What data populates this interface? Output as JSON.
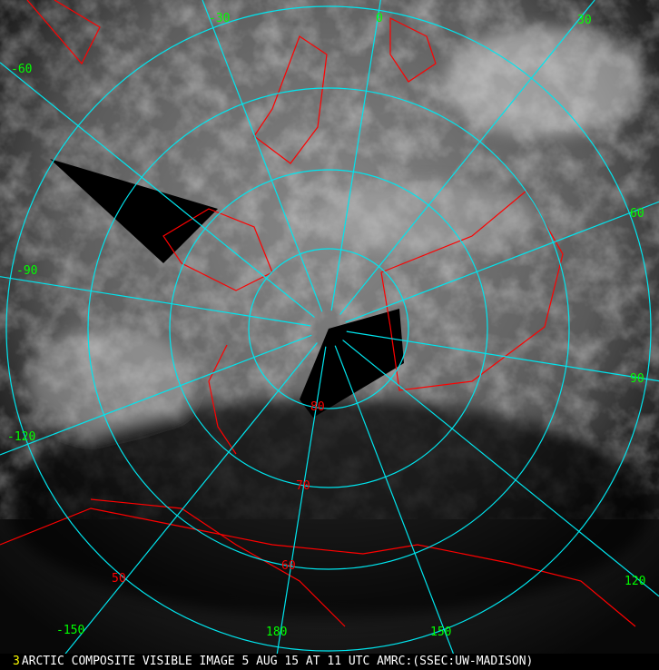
{
  "caption": {
    "frame_number": "3",
    "text": "ARCTIC COMPOSITE VISIBLE IMAGE 5 AUG 15 AT 11 UTC AMRC:(SSEC:UW-MADISON)"
  },
  "map": {
    "projection": "polar-stereographic-north",
    "graticule_color": "#00e5ee",
    "coastline_color": "#ff0000",
    "longitude_label_color": "#00ff00",
    "latitude_label_color": "#ff0000",
    "longitude_labels": [
      "0",
      "30",
      "60",
      "90",
      "120",
      "150",
      "180",
      "-150",
      "-120",
      "-90",
      "-60",
      "-30"
    ],
    "latitude_labels": [
      "80",
      "70",
      "60",
      "50"
    ]
  }
}
